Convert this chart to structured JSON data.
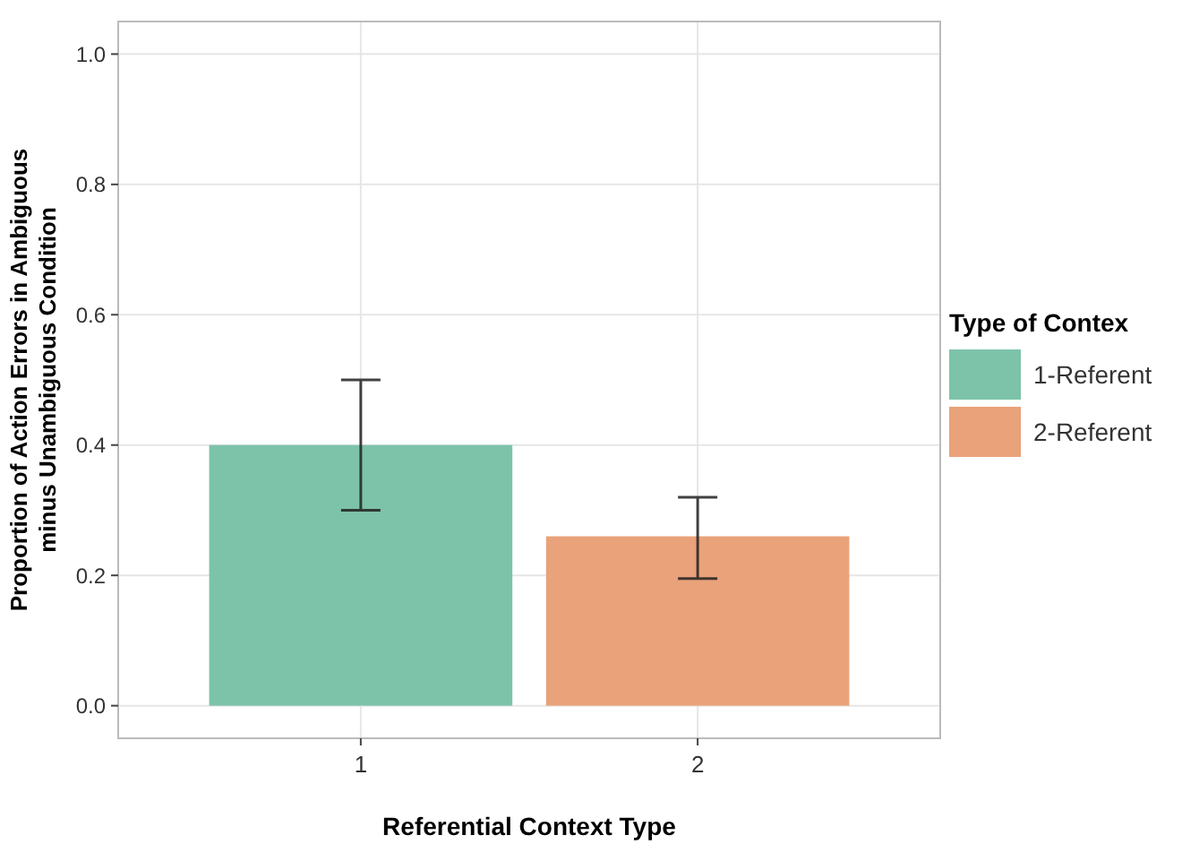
{
  "chart_data": {
    "type": "bar",
    "xlabel": "Referential Context Type",
    "ylabel": "Proportion of Action Errors in Ambiguous\nminus Unambiguous Condition",
    "legend_title": "Type of Contex",
    "categories": [
      "1",
      "2"
    ],
    "stacked": true,
    "series": [
      {
        "name": "1-Referent",
        "color": "#7cc3a9",
        "values": [
          0.4,
          null
        ],
        "errors": [
          [
            0.3,
            0.5
          ],
          null
        ]
      },
      {
        "name": "2-Referent",
        "color": "#e9a27a",
        "values": [
          null,
          0.26
        ],
        "errors": [
          null,
          [
            0.195,
            0.32
          ]
        ]
      }
    ],
    "ylim": [
      -0.05,
      1.05
    ],
    "yticks": [
      {
        "value": 0,
        "label": "0.0"
      },
      {
        "value": 0.2,
        "label": "0.2"
      },
      {
        "value": 0.4,
        "label": "0.4"
      },
      {
        "value": 0.6,
        "label": "0.6"
      },
      {
        "value": 0.8,
        "label": "0.8"
      },
      {
        "value": 1,
        "label": "1.0"
      }
    ],
    "grid": true,
    "legend": "right"
  }
}
